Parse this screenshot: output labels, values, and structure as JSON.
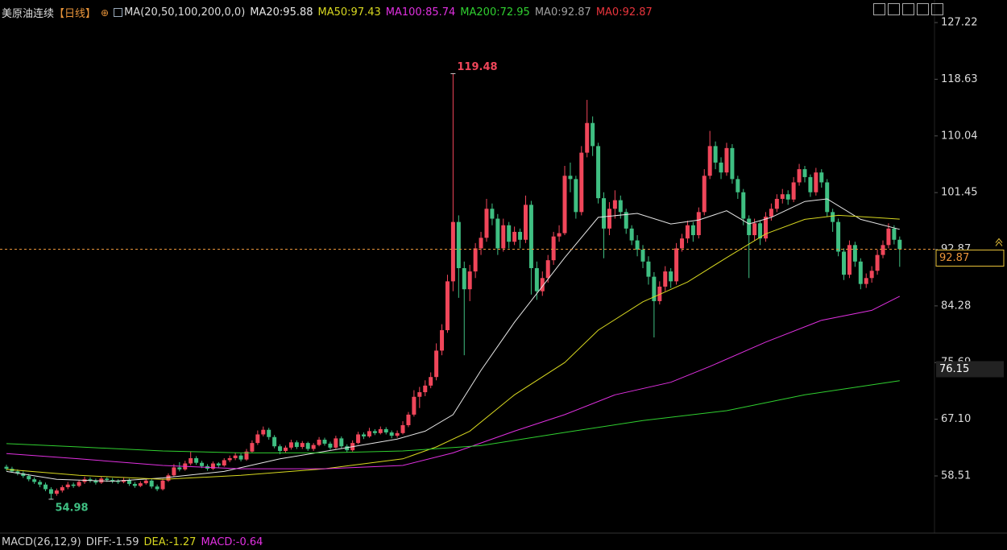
{
  "chart_data": {
    "type": "candlestick",
    "title": "美原油连续",
    "period": "【日线】",
    "indicator": "MA(20,50,100,200,0,0)",
    "up_color": "#f0465a",
    "down_color": "#3fbf82",
    "ylim": [
      50.09,
      130.64
    ],
    "yticks": [
      58.51,
      {
        "value": 67.1,
        "label": "67.10"
      },
      75.69,
      84.28,
      92.87,
      101.45,
      110.04,
      118.63,
      127.22
    ],
    "last_price": {
      "value": 92.87,
      "label": "92.87",
      "color": "#e8943a"
    },
    "reference_price": {
      "value": 76.15,
      "label": "76.15"
    },
    "annotations": [
      {
        "label": "119.48",
        "color": "#f0465a",
        "at": "high"
      },
      {
        "label": "54.98",
        "color": "#3fbf82",
        "at": "low"
      }
    ],
    "ohlc": [
      [
        59.9,
        60.2,
        59.3,
        59.6
      ],
      [
        59.6,
        59.9,
        59.0,
        59.2
      ],
      [
        59.2,
        59.5,
        58.6,
        58.9
      ],
      [
        58.9,
        59.2,
        58.2,
        58.5
      ],
      [
        58.5,
        58.8,
        57.7,
        58.0
      ],
      [
        58.0,
        58.3,
        57.3,
        57.6
      ],
      [
        57.6,
        57.9,
        56.8,
        57.2
      ],
      [
        57.2,
        57.5,
        56.2,
        56.5
      ],
      [
        56.5,
        56.8,
        54.98,
        55.8
      ],
      [
        55.8,
        56.6,
        55.5,
        56.3
      ],
      [
        56.3,
        57.1,
        56.0,
        56.8
      ],
      [
        56.8,
        57.6,
        56.5,
        57.2
      ],
      [
        57.2,
        57.5,
        56.7,
        57.0
      ],
      [
        57.0,
        57.9,
        56.8,
        57.6
      ],
      [
        57.6,
        58.4,
        57.3,
        58.0
      ],
      [
        58.0,
        58.3,
        57.5,
        57.8
      ],
      [
        57.8,
        58.1,
        57.2,
        57.5
      ],
      [
        57.5,
        58.4,
        57.3,
        58.1
      ],
      [
        58.1,
        58.3,
        57.6,
        57.9
      ],
      [
        57.9,
        58.2,
        57.4,
        57.7
      ],
      [
        57.7,
        58.0,
        57.3,
        57.6
      ],
      [
        57.6,
        58.2,
        57.4,
        57.9
      ],
      [
        57.9,
        58.1,
        57.0,
        57.3
      ],
      [
        57.3,
        57.6,
        56.7,
        57.0
      ],
      [
        57.0,
        57.7,
        56.8,
        57.4
      ],
      [
        57.4,
        58.1,
        57.2,
        57.8
      ],
      [
        57.8,
        58.0,
        56.6,
        56.9
      ],
      [
        56.9,
        57.2,
        56.2,
        56.5
      ],
      [
        56.5,
        58.1,
        56.3,
        57.8
      ],
      [
        57.8,
        58.9,
        57.6,
        58.6
      ],
      [
        58.6,
        60.3,
        58.4,
        59.8
      ],
      [
        59.8,
        60.6,
        59.2,
        59.5
      ],
      [
        59.5,
        60.8,
        59.3,
        60.4
      ],
      [
        60.4,
        62.2,
        60.1,
        61.2
      ],
      [
        61.2,
        61.5,
        60.2,
        60.5
      ],
      [
        60.5,
        60.8,
        59.7,
        60.0
      ],
      [
        60.0,
        60.3,
        59.3,
        59.6
      ],
      [
        59.6,
        60.7,
        59.4,
        60.4
      ],
      [
        60.4,
        60.6,
        59.8,
        60.1
      ],
      [
        60.1,
        61.2,
        59.9,
        60.9
      ],
      [
        60.9,
        61.6,
        60.6,
        61.2
      ],
      [
        61.2,
        62.0,
        60.9,
        61.6
      ],
      [
        61.6,
        61.9,
        60.7,
        61.0
      ],
      [
        61.0,
        62.6,
        60.8,
        62.2
      ],
      [
        62.2,
        63.9,
        62.0,
        63.5
      ],
      [
        63.5,
        65.4,
        63.2,
        64.8
      ],
      [
        64.8,
        66.0,
        64.5,
        65.5
      ],
      [
        65.5,
        65.8,
        64.0,
        64.4
      ],
      [
        64.4,
        64.7,
        62.7,
        63.0
      ],
      [
        63.0,
        63.3,
        61.8,
        62.3
      ],
      [
        62.3,
        63.1,
        62.0,
        62.8
      ],
      [
        62.8,
        64.0,
        62.5,
        63.6
      ],
      [
        63.6,
        63.9,
        62.6,
        62.9
      ],
      [
        62.9,
        63.8,
        62.6,
        63.5
      ],
      [
        63.5,
        63.7,
        62.3,
        62.6
      ],
      [
        62.6,
        63.5,
        62.3,
        63.2
      ],
      [
        63.2,
        64.4,
        63.0,
        64.0
      ],
      [
        64.0,
        64.3,
        63.1,
        63.4
      ],
      [
        63.4,
        63.7,
        62.5,
        62.8
      ],
      [
        62.8,
        64.6,
        62.6,
        64.2
      ],
      [
        64.2,
        64.5,
        62.7,
        63.0
      ],
      [
        63.0,
        63.3,
        62.1,
        62.4
      ],
      [
        62.4,
        63.9,
        62.2,
        63.5
      ],
      [
        63.5,
        65.2,
        63.3,
        64.8
      ],
      [
        64.8,
        65.1,
        64.1,
        64.5
      ],
      [
        64.5,
        65.8,
        64.3,
        65.3
      ],
      [
        65.3,
        65.6,
        64.7,
        65.0
      ],
      [
        65.0,
        66.0,
        64.8,
        65.6
      ],
      [
        65.6,
        65.9,
        64.8,
        65.1
      ],
      [
        65.1,
        65.4,
        64.2,
        64.6
      ],
      [
        64.6,
        65.4,
        64.3,
        65.0
      ],
      [
        65.0,
        66.8,
        64.8,
        66.2
      ],
      [
        66.2,
        68.2,
        65.9,
        67.8
      ],
      [
        67.8,
        71.5,
        67.5,
        70.5
      ],
      [
        70.5,
        72.0,
        68.8,
        71.2
      ],
      [
        71.2,
        73.0,
        70.6,
        72.2
      ],
      [
        72.2,
        74.2,
        71.8,
        73.5
      ],
      [
        73.5,
        78.6,
        73.0,
        77.5
      ],
      [
        77.5,
        81.5,
        76.8,
        80.6
      ],
      [
        80.6,
        89.0,
        80.2,
        88.0
      ],
      [
        88.0,
        119.48,
        86.5,
        97.0
      ],
      [
        97.0,
        98.0,
        85.5,
        90.0
      ],
      [
        90.0,
        91.0,
        76.8,
        86.8
      ],
      [
        86.8,
        90.5,
        85.0,
        89.5
      ],
      [
        89.5,
        93.8,
        88.5,
        93.0
      ],
      [
        93.0,
        95.5,
        92.0,
        94.6
      ],
      [
        94.6,
        100.5,
        94.0,
        99.0
      ],
      [
        99.0,
        99.8,
        96.5,
        97.5
      ],
      [
        97.5,
        98.2,
        92.0,
        93.0
      ],
      [
        93.0,
        97.5,
        92.5,
        96.5
      ],
      [
        96.5,
        97.0,
        93.0,
        94.0
      ],
      [
        94.0,
        96.3,
        93.5,
        95.5
      ],
      [
        95.5,
        96.0,
        93.0,
        94.3
      ],
      [
        94.3,
        101.0,
        93.8,
        99.6
      ],
      [
        99.6,
        100.2,
        86.0,
        90.0
      ],
      [
        90.0,
        91.0,
        85.2,
        86.5
      ],
      [
        86.5,
        89.5,
        85.8,
        88.5
      ],
      [
        88.5,
        92.0,
        87.8,
        91.2
      ],
      [
        91.2,
        95.5,
        90.5,
        94.8
      ],
      [
        94.8,
        96.5,
        94.0,
        95.3
      ],
      [
        95.3,
        105.5,
        95.0,
        104.0
      ],
      [
        104.0,
        106.0,
        101.5,
        103.5
      ],
      [
        103.5,
        104.0,
        97.5,
        98.5
      ],
      [
        98.5,
        108.5,
        98.0,
        107.5
      ],
      [
        107.5,
        115.5,
        106.8,
        112.0
      ],
      [
        112.0,
        113.0,
        107.0,
        108.5
      ],
      [
        108.5,
        109.0,
        99.8,
        100.6
      ],
      [
        100.6,
        101.5,
        91.5,
        96.0
      ],
      [
        96.0,
        100.0,
        95.0,
        99.0
      ],
      [
        99.0,
        101.8,
        97.5,
        100.3
      ],
      [
        100.3,
        101.0,
        97.5,
        98.5
      ],
      [
        98.5,
        99.0,
        95.2,
        96.0
      ],
      [
        96.0,
        96.5,
        93.5,
        94.2
      ],
      [
        94.2,
        95.0,
        91.8,
        92.8
      ],
      [
        92.8,
        93.5,
        90.0,
        91.0
      ],
      [
        91.0,
        91.8,
        87.5,
        88.7
      ],
      [
        88.7,
        89.4,
        79.5,
        85.0
      ],
      [
        85.0,
        88.0,
        84.5,
        87.2
      ],
      [
        87.2,
        90.3,
        86.5,
        89.5
      ],
      [
        89.5,
        90.0,
        87.0,
        88.0
      ],
      [
        88.0,
        93.8,
        87.5,
        93.0
      ],
      [
        93.0,
        95.2,
        92.5,
        94.5
      ],
      [
        94.5,
        97.2,
        93.8,
        96.5
      ],
      [
        96.5,
        97.0,
        94.0,
        95.0
      ],
      [
        95.0,
        99.2,
        94.5,
        98.5
      ],
      [
        98.5,
        105.0,
        98.0,
        104.0
      ],
      [
        104.0,
        110.8,
        103.5,
        108.5
      ],
      [
        108.5,
        109.2,
        105.0,
        106.0
      ],
      [
        106.0,
        106.8,
        103.5,
        104.5
      ],
      [
        104.5,
        109.0,
        104.0,
        108.2
      ],
      [
        108.2,
        108.8,
        102.8,
        103.5
      ],
      [
        103.5,
        104.0,
        100.5,
        101.5
      ],
      [
        101.5,
        102.0,
        96.5,
        97.5
      ],
      [
        97.5,
        98.0,
        88.5,
        95.0
      ],
      [
        95.0,
        97.5,
        94.2,
        96.8
      ],
      [
        96.8,
        97.2,
        93.5,
        94.5
      ],
      [
        94.5,
        98.5,
        94.0,
        97.8
      ],
      [
        97.8,
        99.8,
        97.2,
        99.0
      ],
      [
        99.0,
        101.2,
        98.5,
        100.5
      ],
      [
        100.5,
        102.0,
        99.8,
        101.2
      ],
      [
        101.2,
        101.8,
        99.6,
        100.4
      ],
      [
        100.4,
        103.8,
        100.0,
        103.0
      ],
      [
        103.0,
        105.8,
        102.5,
        105.0
      ],
      [
        105.0,
        105.5,
        103.0,
        103.8
      ],
      [
        103.8,
        104.2,
        100.8,
        101.5
      ],
      [
        101.5,
        105.2,
        101.0,
        104.5
      ],
      [
        104.5,
        105.0,
        102.2,
        103.0
      ],
      [
        103.0,
        103.5,
        97.8,
        98.5
      ],
      [
        98.5,
        99.0,
        95.5,
        97.0
      ],
      [
        97.0,
        97.5,
        91.8,
        92.5
      ],
      [
        92.5,
        93.0,
        88.2,
        89.0
      ],
      [
        89.0,
        94.2,
        88.5,
        93.5
      ],
      [
        93.5,
        94.0,
        90.2,
        91.0
      ],
      [
        91.0,
        91.5,
        86.8,
        87.6
      ],
      [
        87.6,
        89.2,
        87.0,
        88.5
      ],
      [
        88.5,
        90.3,
        87.8,
        89.6
      ],
      [
        89.6,
        92.8,
        89.0,
        92.0
      ],
      [
        92.0,
        94.2,
        91.5,
        93.5
      ],
      [
        93.5,
        96.8,
        93.0,
        96.0
      ],
      [
        96.0,
        96.5,
        93.6,
        94.3
      ],
      [
        94.3,
        94.8,
        90.2,
        92.87
      ]
    ],
    "series": [
      {
        "name": "MA20:95.88",
        "color": "#e6e6e6",
        "x": [
          0,
          9,
          19,
          28,
          39,
          49,
          59,
          70,
          75,
          80,
          85,
          91,
          100,
          106,
          113,
          119,
          124,
          129,
          133,
          137,
          143,
          147,
          153,
          160
        ],
        "values": [
          59.2,
          58.0,
          57.7,
          58.2,
          59.2,
          61.1,
          62.5,
          64.1,
          65.3,
          67.8,
          74.5,
          81.8,
          91.6,
          97.7,
          98.3,
          96.7,
          97.3,
          98.7,
          96.7,
          97.7,
          100.1,
          100.5,
          97.4,
          95.88
        ]
      },
      {
        "name": "MA50:97.43",
        "color": "#d8d820",
        "x": [
          0,
          13,
          28,
          42,
          57,
          71,
          77,
          83,
          91,
          100,
          106,
          114,
          122,
          129,
          136,
          143,
          149,
          155,
          160
        ],
        "values": [
          59.5,
          58.6,
          58.0,
          58.6,
          59.6,
          61.1,
          62.9,
          65.3,
          70.8,
          75.7,
          80.6,
          84.9,
          87.9,
          91.6,
          95.2,
          97.4,
          98.0,
          97.7,
          97.43
        ]
      },
      {
        "name": "MA100:85.74",
        "color": "#e030e0",
        "x": [
          0,
          13,
          28,
          42,
          57,
          71,
          80,
          91,
          100,
          109,
          119,
          126,
          136,
          146,
          155,
          160
        ],
        "values": [
          61.9,
          61.1,
          60.1,
          59.6,
          59.6,
          60.1,
          62.0,
          65.3,
          67.8,
          70.8,
          72.7,
          75.1,
          78.8,
          82.1,
          83.6,
          85.74
        ]
      },
      {
        "name": "MA200:72.95",
        "color": "#30d030",
        "x": [
          0,
          13,
          28,
          42,
          57,
          71,
          85,
          100,
          114,
          129,
          143,
          160
        ],
        "values": [
          63.4,
          62.9,
          62.3,
          62.0,
          62.0,
          62.3,
          63.1,
          65.1,
          66.9,
          68.4,
          70.8,
          72.95
        ]
      }
    ],
    "extra_legend": [
      {
        "name": "MA0:92.87",
        "color": "#a0a0a0"
      },
      {
        "name": "MA0:92.87",
        "color": "#e8343c"
      }
    ],
    "macd_legend": [
      {
        "name": "MACD(26,12,9)",
        "color": "#d0d0d0"
      },
      {
        "name": "DIFF:-1.59",
        "color": "#d0d0d0"
      },
      {
        "name": "DEA:-1.27",
        "color": "#d8d820"
      },
      {
        "name": "MACD:-0.64",
        "color": "#e030e0"
      }
    ]
  }
}
